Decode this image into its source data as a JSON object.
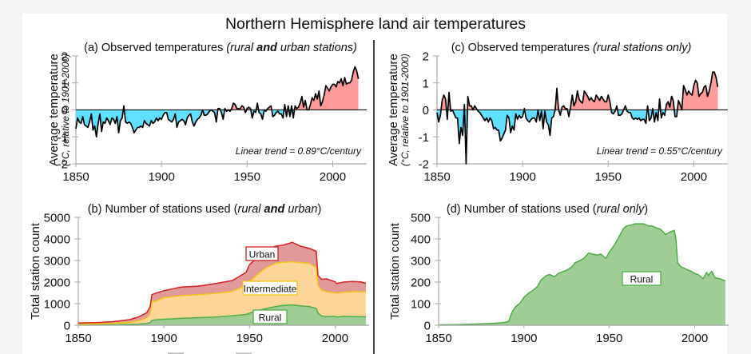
{
  "page": {
    "title": "Northern Hemisphere land air temperatures",
    "background": "#f4f4f4",
    "panel_background": "#ffffff"
  },
  "colors": {
    "warm_fill": "#ff9b9b",
    "cool_fill": "#5fe0ff",
    "line": "#000000",
    "urban_fill": "#e09a9a",
    "urban_line": "#d42020",
    "intermediate_fill": "#fdd598",
    "intermediate_line": "#f5c518",
    "rural_fill": "#9fce94",
    "rural_line": "#4caf45",
    "axis": "#aaaaaa"
  },
  "chart_data": [
    {
      "id": "a",
      "type": "area",
      "title_parts": [
        {
          "text": "(a) Observed temperatures ",
          "style": "normal"
        },
        {
          "text": "(rural ",
          "style": "italic"
        },
        {
          "text": "and",
          "style": "bold-italic"
        },
        {
          "text": " urban stations)",
          "style": "italic"
        }
      ],
      "ylabel": "Average temperature",
      "ylabel_sub": "(°C, relative to 1901-2000)",
      "xlabel": "",
      "xlim": [
        1850,
        2018
      ],
      "ylim": [
        -2,
        2
      ],
      "xticks": [
        1850,
        1900,
        1950,
        2000
      ],
      "yticks": [
        -2,
        -1,
        0,
        1,
        2
      ],
      "annotation": "Linear trend = 0.89°C/century",
      "x_start": 1850,
      "values": [
        -0.7,
        -0.3,
        -0.45,
        -0.5,
        -0.25,
        -0.55,
        -0.6,
        -0.65,
        -0.45,
        -0.15,
        -0.75,
        -0.6,
        -1.0,
        -0.5,
        -0.15,
        -0.8,
        -0.45,
        -0.5,
        -0.3,
        -0.4,
        -0.55,
        -0.3,
        -0.35,
        -0.5,
        -0.25,
        -0.85,
        -0.4,
        -0.3,
        0.15,
        -0.45,
        -0.5,
        -0.45,
        -0.5,
        -0.65,
        -0.85,
        -0.75,
        -0.65,
        -0.65,
        -0.6,
        -0.65,
        -0.4,
        -0.5,
        -0.55,
        -0.6,
        -0.4,
        -0.5,
        -0.45,
        -0.3,
        -0.4,
        -0.3,
        -0.35,
        -0.2,
        -0.1,
        -0.1,
        -0.35,
        -0.4,
        -0.45,
        -0.35,
        -0.15,
        -0.65,
        -0.45,
        -0.4,
        -0.35,
        -0.4,
        -0.55,
        -0.3,
        -0.2,
        -0.15,
        -0.45,
        -0.6,
        -0.45,
        -0.35,
        -0.3,
        -0.2,
        0.0,
        -0.2,
        -0.2,
        -0.15,
        -0.05,
        0.0,
        -0.05,
        -0.1,
        -0.45,
        0.05,
        0.05,
        -0.1,
        -0.35,
        0.05,
        -0.05,
        0.0,
        -0.05,
        0.05,
        0.25,
        0.2,
        0.05,
        0.05,
        0.05,
        0.15,
        0.1,
        -0.1,
        0.05,
        0.1,
        0.05,
        -0.3,
        -0.05,
        -0.1,
        0.25,
        -0.1,
        -0.15,
        -0.35,
        0.0,
        -0.05,
        0.05,
        0.1,
        0.15,
        -0.25,
        -0.2,
        -0.1,
        -0.05,
        -0.15,
        -0.15,
        -0.3,
        0.2,
        -0.25,
        0.15,
        -0.25,
        0.15,
        -0.3,
        0.15,
        0.05,
        0.1,
        0.25,
        0.5,
        0.1,
        0.35,
        0.0,
        0.0,
        0.2,
        0.45,
        0.35,
        0.6,
        0.4,
        0.7,
        0.15,
        0.3,
        0.55,
        0.9,
        0.8,
        0.7,
        0.85,
        0.95,
        0.95,
        0.85,
        1.05,
        1.0,
        1.15,
        0.9,
        1.2,
        0.95,
        1.0,
        1.0,
        1.1,
        1.4,
        1.6,
        1.45,
        1.15
      ],
      "legend": []
    },
    {
      "id": "b",
      "type": "area",
      "stacked": true,
      "title_parts": [
        {
          "text": "(b) Number of stations used (",
          "style": "normal"
        },
        {
          "text": "rural ",
          "style": "italic"
        },
        {
          "text": "and",
          "style": "bold-italic"
        },
        {
          "text": " urban",
          "style": "italic"
        },
        {
          "text": ")",
          "style": "normal"
        }
      ],
      "ylabel": "Total station count",
      "xlabel": "",
      "xlim": [
        1850,
        2018
      ],
      "ylim": [
        0,
        5000
      ],
      "xticks": [
        1850,
        1900,
        1950,
        2000
      ],
      "yticks": [
        0,
        1000,
        2000,
        3000,
        4000,
        5000
      ],
      "x": [
        1850,
        1860,
        1870,
        1880,
        1885,
        1890,
        1892,
        1893,
        1895,
        1900,
        1910,
        1920,
        1930,
        1940,
        1948,
        1950,
        1955,
        1960,
        1965,
        1970,
        1975,
        1980,
        1985,
        1989,
        1990,
        1992,
        1995,
        2000,
        2001,
        2003,
        2005,
        2010,
        2015,
        2018
      ],
      "series": [
        {
          "name": "Rural",
          "values": [
            20,
            25,
            30,
            40,
            50,
            80,
            120,
            220,
            250,
            280,
            320,
            350,
            380,
            440,
            500,
            560,
            680,
            780,
            860,
            920,
            940,
            900,
            860,
            780,
            560,
            430,
            400,
            410,
            380,
            400,
            410,
            400,
            400,
            390
          ]
        },
        {
          "name": "Intermediate",
          "values": [
            30,
            40,
            60,
            100,
            150,
            250,
            400,
            900,
            850,
            1000,
            1050,
            1060,
            1100,
            1130,
            1350,
            1450,
            1700,
            1900,
            2000,
            2000,
            2000,
            2000,
            2000,
            1900,
            1300,
            1200,
            1150,
            1100,
            1100,
            1120,
            1120,
            1150,
            1150,
            1150
          ]
        },
        {
          "name": "Urban",
          "values": [
            50,
            55,
            70,
            120,
            180,
            250,
            350,
            300,
            380,
            320,
            400,
            400,
            450,
            500,
            600,
            800,
            780,
            800,
            800,
            800,
            900,
            760,
            700,
            750,
            450,
            500,
            600,
            500,
            450,
            450,
            470,
            480,
            460,
            400
          ]
        }
      ],
      "legend": [
        "Urban",
        "Intermediate",
        "Rural"
      ]
    },
    {
      "id": "c",
      "type": "area",
      "title_parts": [
        {
          "text": "(c) Observed temperatures ",
          "style": "normal"
        },
        {
          "text": "(rural stations only)",
          "style": "italic"
        }
      ],
      "ylabel": "Average temperature",
      "ylabel_sub": "(°C, relative to 1901-2000)",
      "xlabel": "",
      "xlim": [
        1850,
        2018
      ],
      "ylim": [
        -2,
        2
      ],
      "xticks": [
        1850,
        1900,
        1950,
        2000
      ],
      "yticks": [
        -2,
        -1,
        0,
        1,
        2
      ],
      "annotation": "Linear trend = 0.55°C/century",
      "x_start": 1850,
      "values": [
        -0.1,
        -0.45,
        -0.2,
        0.35,
        0.55,
        0.4,
        -0.35,
        0.65,
        -0.05,
        0.0,
        -0.15,
        -0.3,
        -0.3,
        -1.25,
        -0.65,
        -0.95,
        0.2,
        -2.0,
        0.5,
        0.15,
        0.15,
        0.0,
        0.15,
        0.05,
        -0.05,
        -0.1,
        -0.2,
        -0.3,
        -0.4,
        -0.3,
        -0.45,
        -0.3,
        -0.4,
        -0.7,
        -0.65,
        -0.75,
        -0.75,
        -1.15,
        -1.05,
        -0.9,
        -0.75,
        -0.2,
        -0.3,
        -0.85,
        -0.6,
        -0.75,
        -0.15,
        -0.35,
        -0.2,
        -0.3,
        -0.25,
        0.05,
        -0.3,
        -0.4,
        -0.45,
        -0.35,
        -0.3,
        -0.3,
        -0.45,
        0.0,
        -0.4,
        -0.05,
        -0.7,
        -0.05,
        -0.45,
        -0.55,
        -0.95,
        -0.3,
        -0.25,
        0.0,
        0.8,
        0.0,
        -0.2,
        0.1,
        0.15,
        0.05,
        0.05,
        -0.25,
        0.1,
        0.55,
        0.15,
        0.3,
        0.7,
        0.4,
        0.3,
        0.25,
        0.7,
        0.6,
        0.5,
        0.35,
        0.45,
        0.35,
        0.3,
        0.55,
        0.45,
        0.35,
        0.5,
        0.4,
        0.3,
        0.3,
        0.55,
        0.3,
        -0.1,
        -0.15,
        -0.05,
        0.15,
        -0.2,
        -0.2,
        -0.15,
        0.0,
        0.15,
        -0.05,
        -0.1,
        -0.1,
        -0.3,
        -0.35,
        -0.3,
        -0.35,
        -0.3,
        -0.4,
        -0.35,
        -0.35,
        -0.5,
        0.15,
        -0.4,
        -0.3,
        0.05,
        -0.45,
        -0.1,
        -0.4,
        0.4,
        -0.3,
        -0.1,
        -0.2,
        0.2,
        0.3,
        0.1,
        0.5,
        0.35,
        -0.25,
        -0.25,
        0.35,
        0.2,
        0.0,
        0.9,
        0.75,
        0.55,
        0.7,
        0.6,
        0.55,
        0.9,
        1.1,
        1.0,
        0.5,
        0.6,
        0.65,
        0.85,
        0.9,
        0.5,
        0.7,
        1.0,
        1.4,
        1.4,
        1.2,
        0.85
      ],
      "legend": []
    },
    {
      "id": "d",
      "type": "area",
      "title_parts": [
        {
          "text": "(d) Number of stations used (",
          "style": "normal"
        },
        {
          "text": "rural only",
          "style": "italic"
        },
        {
          "text": ")",
          "style": "normal"
        }
      ],
      "ylabel": "Total station count",
      "xlabel": "",
      "xlim": [
        1850,
        2018
      ],
      "ylim": [
        0,
        500
      ],
      "xticks": [
        1850,
        1900,
        1950,
        2000
      ],
      "yticks": [
        0,
        100,
        200,
        300,
        400,
        500
      ],
      "x": [
        1850,
        1860,
        1870,
        1880,
        1888,
        1891,
        1893,
        1895,
        1898,
        1900,
        1903,
        1905,
        1908,
        1910,
        1913,
        1915,
        1918,
        1920,
        1925,
        1928,
        1930,
        1933,
        1935,
        1938,
        1940,
        1943,
        1945,
        1948,
        1950,
        1952,
        1955,
        1958,
        1960,
        1963,
        1965,
        1968,
        1970,
        1973,
        1975,
        1978,
        1980,
        1983,
        1985,
        1988,
        1989,
        1990,
        1992,
        1995,
        1998,
        2000,
        2002,
        2005,
        2007,
        2008,
        2010,
        2012,
        2015,
        2018
      ],
      "series": [
        {
          "name": "Rural",
          "values": [
            2,
            3,
            5,
            8,
            12,
            18,
            60,
            85,
            105,
            130,
            150,
            160,
            180,
            210,
            230,
            235,
            225,
            240,
            255,
            270,
            290,
            300,
            310,
            335,
            330,
            325,
            330,
            310,
            340,
            360,
            400,
            445,
            460,
            465,
            470,
            470,
            470,
            460,
            460,
            450,
            445,
            420,
            430,
            440,
            400,
            290,
            270,
            260,
            250,
            240,
            235,
            215,
            245,
            230,
            250,
            220,
            215,
            205
          ]
        }
      ],
      "legend": [
        "Rural"
      ]
    }
  ]
}
